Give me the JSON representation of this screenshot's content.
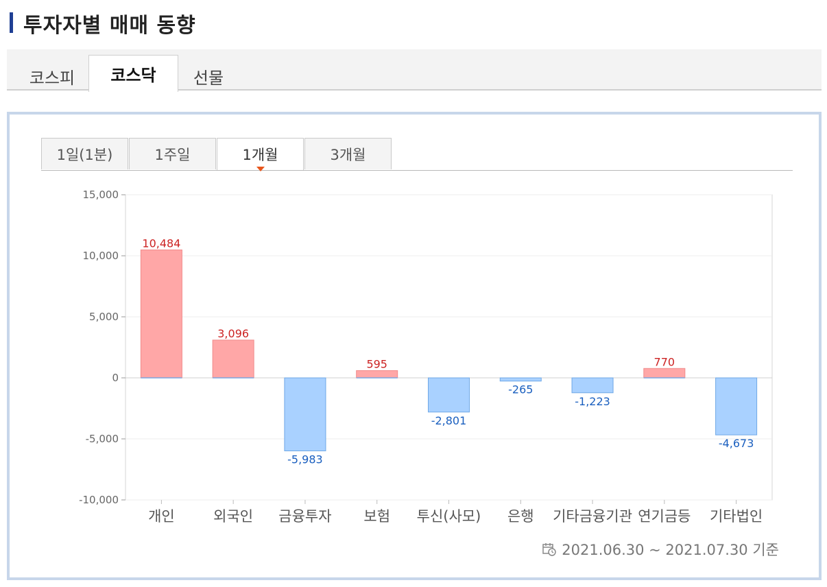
{
  "page_title": "투자자별 매매 동향",
  "market_tabs": [
    {
      "label": "코스피",
      "active": false
    },
    {
      "label": "코스닥",
      "active": true
    },
    {
      "label": "선물",
      "active": false
    }
  ],
  "period_tabs": [
    {
      "label": "1일(1분)",
      "active": false
    },
    {
      "label": "1주일",
      "active": false
    },
    {
      "label": "1개월",
      "active": true
    },
    {
      "label": "3개월",
      "active": false
    }
  ],
  "footnote": "2021.06.30 ~ 2021.07.30 기준",
  "colors": {
    "positive_fill": "#ffa7a7",
    "positive_stroke": "#f08a8a",
    "negative_fill": "#a9d1ff",
    "negative_stroke": "#6fa8e6",
    "positive_label": "#cc2222",
    "negative_label": "#1a5fbf",
    "accent": "#1f3f94"
  },
  "chart_data": {
    "type": "bar",
    "categories": [
      "개인",
      "외국인",
      "금융투자",
      "보험",
      "투신(사모)",
      "은행",
      "기타금융기관",
      "연기금등",
      "기타법인"
    ],
    "values": [
      10484,
      3096,
      -5983,
      595,
      -2801,
      -265,
      -1223,
      770,
      -4673
    ],
    "value_labels": [
      "10,484",
      "3,096",
      "-5,983",
      "595",
      "-2,801",
      "-265",
      "-1,223",
      "770",
      "-4,673"
    ],
    "ylim": [
      -10000,
      15000
    ],
    "yticks": [
      15000,
      10000,
      5000,
      0,
      -5000,
      -10000
    ],
    "ytick_labels": [
      "15,000",
      "10,000",
      "5,000",
      "0",
      "-5,000",
      "-10,000"
    ],
    "grid": true,
    "title": "",
    "xlabel": "",
    "ylabel": ""
  }
}
